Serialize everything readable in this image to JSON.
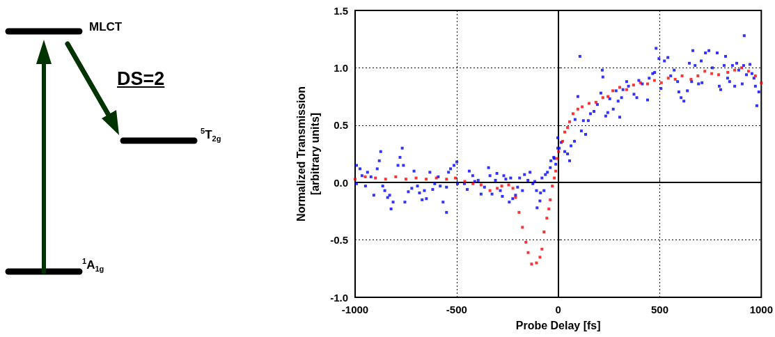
{
  "chart_data": {
    "type": "scatter",
    "xlabel": "Probe Delay [fs]",
    "ylabel": "Normalized Transmission\n[arbitrary units]",
    "xlim": [
      -1000,
      1000
    ],
    "xticks": [
      -1000,
      -500,
      0,
      500,
      1000
    ],
    "ylim": [
      -1.0,
      1.5
    ],
    "yticks": [
      {
        "value": -1.0,
        "label": "-1.0"
      },
      {
        "value": -0.5,
        "label": "-0.5"
      },
      {
        "value": 0.0,
        "label": "0.0"
      },
      {
        "value": 0.5,
        "label": "0.5"
      },
      {
        "value": 1.0,
        "label": "1.0"
      },
      {
        "value": 1.5,
        "label": "1.5"
      }
    ],
    "grid": true,
    "marker": "square",
    "annotations": [
      "MLCT",
      "DS=2",
      "$^{1}$A$_{1g}$",
      "$^{5}$T$_{2g}$"
    ],
    "series": [
      {
        "color": "#0000ff",
        "x": [
          -993,
          -976,
          -993,
          -966,
          -949,
          -939,
          -922,
          -908,
          -891,
          -881,
          -874,
          -864,
          -854,
          -840,
          -830,
          -823,
          -813,
          -789,
          -779,
          -768,
          -762,
          -755,
          -738,
          -721,
          -710,
          -693,
          -683,
          -670,
          -659,
          -649,
          -632,
          -618,
          -608,
          -591,
          -581,
          -567,
          -550,
          -550,
          -540,
          -530,
          -513,
          -499,
          -496,
          -462,
          -448,
          -438,
          -421,
          -411,
          -394,
          -380,
          -363,
          -343,
          -336,
          -326,
          -309,
          -302,
          -285,
          -275,
          -268,
          -258,
          -241,
          -234,
          -224,
          -210,
          -200,
          -190,
          -176,
          -166,
          -149,
          -139,
          -125,
          -115,
          -107,
          -104,
          -90,
          -87,
          -80,
          -70,
          -63,
          -53,
          -39,
          -36,
          -22,
          -19,
          -12,
          -2,
          -2,
          5,
          15,
          32,
          46,
          56,
          63,
          80,
          83,
          97,
          107,
          114,
          124,
          135,
          148,
          159,
          176,
          193,
          210,
          217,
          220,
          234,
          244,
          254,
          271,
          285,
          295,
          303,
          312,
          319,
          337,
          346,
          373,
          387,
          397,
          414,
          440,
          448,
          465,
          475,
          482,
          496,
          506,
          523,
          540,
          554,
          571,
          588,
          594,
          605,
          619,
          636,
          646,
          657,
          663,
          674,
          691,
          704,
          708,
          725,
          742,
          759,
          783,
          793,
          800,
          817,
          824,
          834,
          844,
          858,
          869,
          879,
          889,
          906,
          913,
          916,
          927,
          944,
          954,
          964,
          971,
          978,
          988
        ],
        "values": [
          0.15,
          0.12,
          -0.01,
          0.06,
          -0.03,
          0.09,
          0.05,
          -0.11,
          0.12,
          0.19,
          0.27,
          -0.03,
          -0.07,
          -0.13,
          -0.11,
          -0.23,
          -0.17,
          0.15,
          0.22,
          0.3,
          0.15,
          -0.17,
          -0.08,
          -0.05,
          0.1,
          -0.03,
          -0.09,
          -0.15,
          -0.07,
          -0.14,
          0.09,
          -0.06,
          -0.01,
          0.05,
          -0.03,
          -0.17,
          -0.26,
          -0.04,
          0.09,
          0.12,
          0.15,
          0.18,
          -0.01,
          -0.01,
          -0.06,
          0.1,
          0.06,
          0.01,
          0.02,
          -0.1,
          -0.04,
          0.13,
          0.06,
          -0.1,
          0.02,
          0.08,
          -0.07,
          -0.12,
          0.06,
          0.03,
          -0.17,
          0.04,
          -0.14,
          -0.11,
          -0.04,
          0.04,
          -0.07,
          0.07,
          0.02,
          0.09,
          -0.01,
          0.01,
          -0.07,
          -0.22,
          -0.16,
          -0.09,
          0.04,
          -0.07,
          0.07,
          0.09,
          0.13,
          0.19,
          0.22,
          0.21,
          0.16,
          0.3,
          0.39,
          0.3,
          0.35,
          0.27,
          0.25,
          0.19,
          0.32,
          0.36,
          0.55,
          0.75,
          1.1,
          0.45,
          0.54,
          0.42,
          0.54,
          0.6,
          0.62,
          0.68,
          0.78,
          0.98,
          0.92,
          0.58,
          0.61,
          0.73,
          0.64,
          0.8,
          0.71,
          0.57,
          0.74,
          0.81,
          0.88,
          0.84,
          0.77,
          0.74,
          0.89,
          0.86,
          0.72,
          0.91,
          0.95,
          0.96,
          1.17,
          1.08,
          0.82,
          1.06,
          1.09,
          0.93,
          0.98,
          0.88,
          0.79,
          0.74,
          0.71,
          0.8,
          1.04,
          0.88,
          1.15,
          1.02,
          0.86,
          1.06,
          0.87,
          1.13,
          1.15,
          1.0,
          1.13,
          0.84,
          0.81,
          1.02,
          1.1,
          0.91,
          0.88,
          1.02,
          0.84,
          1.04,
          0.98,
          0.86,
          1.02,
          1.28,
          0.94,
          1.03,
          0.95,
          0.91,
          0.84,
          0.67,
          0.79
        ]
      },
      {
        "color": "#ff0000",
        "x": [
          -1000,
          -950,
          -900,
          -850,
          -800,
          -750,
          -700,
          -650,
          -600,
          -550,
          -506,
          -460,
          -420,
          -380,
          -336,
          -300,
          -278,
          -244,
          -223,
          -210,
          -193,
          -176,
          -159,
          -148,
          -131,
          -107,
          -90,
          -80,
          -70,
          -56,
          -46,
          -39,
          -29,
          -19,
          -12,
          -5,
          2,
          22,
          32,
          46,
          56,
          73,
          97,
          118,
          152,
          186,
          220,
          245,
          269,
          303,
          337,
          371,
          405,
          440,
          474,
          508,
          542,
          576,
          610,
          654,
          688,
          722,
          756,
          790,
          835,
          869,
          903,
          937,
          971,
          1000
        ],
        "values": [
          0.03,
          0.05,
          0.04,
          0.03,
          0.05,
          0.03,
          0.04,
          0.03,
          0.04,
          0.03,
          0.04,
          0.01,
          -0.01,
          -0.02,
          -0.07,
          -0.05,
          -0.03,
          -0.02,
          -0.05,
          -0.13,
          -0.26,
          -0.39,
          -0.52,
          -0.61,
          -0.71,
          -0.7,
          -0.65,
          -0.58,
          -0.43,
          -0.31,
          -0.23,
          -0.15,
          -0.03,
          0.04,
          0.1,
          0.21,
          0.27,
          0.36,
          0.44,
          0.48,
          0.53,
          0.6,
          0.64,
          0.66,
          0.69,
          0.7,
          0.74,
          0.75,
          0.8,
          0.83,
          0.81,
          0.85,
          0.87,
          0.86,
          0.89,
          0.87,
          0.91,
          0.9,
          0.93,
          0.9,
          0.93,
          0.97,
          0.95,
          0.94,
          0.96,
          0.98,
          1.0,
          0.97,
          0.93,
          0.87
        ]
      }
    ]
  }
}
